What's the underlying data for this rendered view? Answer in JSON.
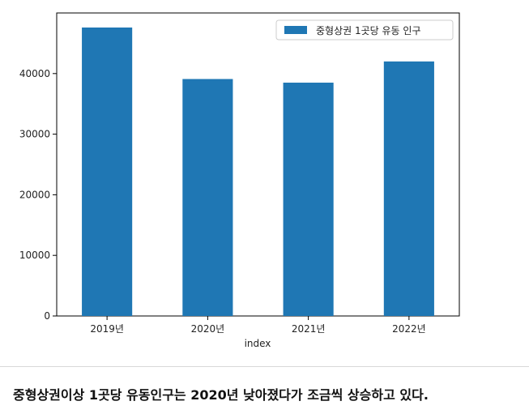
{
  "chart_data": {
    "type": "bar",
    "categories": [
      "2019년",
      "2020년",
      "2021년",
      "2022년"
    ],
    "series": [
      {
        "name": "중형상권 1곳당 유동 인구",
        "values": [
          47600,
          39100,
          38500,
          42000
        ]
      }
    ],
    "xlabel": "index",
    "ylabel": "",
    "ylim": [
      0,
      50000
    ],
    "yticks": [
      0,
      10000,
      20000,
      30000,
      40000
    ],
    "ytick_labels": [
      "0",
      "10000",
      "20000",
      "30000",
      "40000"
    ],
    "grid": false,
    "legend_position": "top-right",
    "bar_color": "#1f77b4"
  },
  "caption": "중형상권이상 1곳당 유동인구는 2020년 낮아졌다가 조금씩 상승하고 있다."
}
